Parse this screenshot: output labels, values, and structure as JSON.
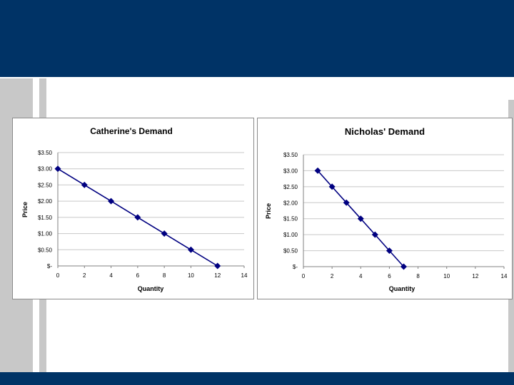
{
  "colors": {
    "header_band": "#003366",
    "side_bars": "#c8c8c8",
    "series": "#000080"
  },
  "chart_data": [
    {
      "type": "line",
      "title": "Catherine's Demand",
      "xlabel": "Quantity",
      "ylabel": "Price",
      "x": [
        0,
        2,
        4,
        6,
        8,
        10,
        12
      ],
      "series": [
        {
          "values": [
            3.0,
            2.5,
            2.0,
            1.5,
            1.0,
            0.5,
            0.0
          ]
        }
      ],
      "xlim": [
        0,
        14
      ],
      "ylim": [
        0,
        3.5
      ],
      "x_ticks": [
        "0",
        "2",
        "4",
        "6",
        "8",
        "10",
        "12",
        "14"
      ],
      "y_ticks": [
        "$-",
        "$0.50",
        "$1.00",
        "$1.50",
        "$2.00",
        "$2.50",
        "$3.00",
        "$3.50"
      ],
      "grid": "horizontal",
      "legend": "none",
      "marker": "diamond"
    },
    {
      "type": "line",
      "title": "Nicholas' Demand",
      "xlabel": "Quantity",
      "ylabel": "Price",
      "x": [
        1,
        2,
        3,
        4,
        5,
        6,
        7
      ],
      "series": [
        {
          "values": [
            3.0,
            2.5,
            2.0,
            1.5,
            1.0,
            0.5,
            0.0
          ]
        }
      ],
      "xlim": [
        0,
        14
      ],
      "ylim": [
        0,
        3.5
      ],
      "x_ticks": [
        "0",
        "2",
        "4",
        "6",
        "8",
        "10",
        "12",
        "14"
      ],
      "y_ticks": [
        "$-",
        "$0.50",
        "$1.00",
        "$1.50",
        "$2.00",
        "$2.50",
        "$3.00",
        "$3.50"
      ],
      "grid": "horizontal",
      "legend": "none",
      "marker": "diamond"
    }
  ]
}
